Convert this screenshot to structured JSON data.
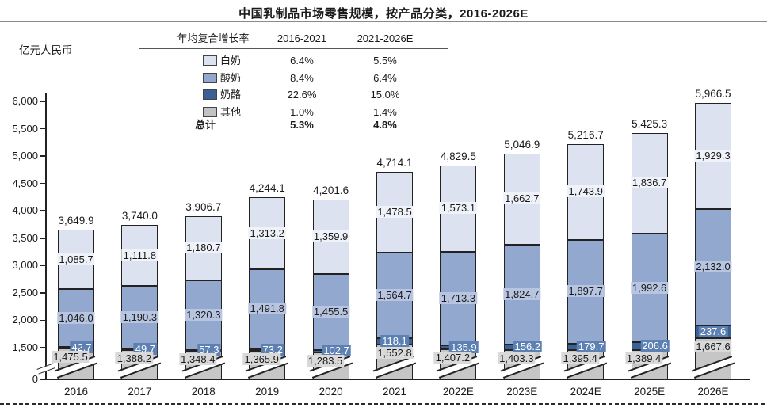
{
  "title": "中国乳制品市场零售规模，按产品分类，2016-2026E",
  "y_axis_unit": "亿元人民币",
  "legend": {
    "header": {
      "col_label": "年均复合增长率",
      "col_2016_2021": "2016-2021",
      "col_2021_2026": "2021-2026E"
    },
    "rows": [
      {
        "label": "白奶",
        "swatch_color": "#dce2ef",
        "cagr_2016_2021": "6.4%",
        "cagr_2021_2026": "5.5%"
      },
      {
        "label": "酸奶",
        "swatch_color": "#92a8ce",
        "cagr_2016_2021": "8.4%",
        "cagr_2021_2026": "6.4%"
      },
      {
        "label": "奶酪",
        "swatch_color": "#3a6195",
        "cagr_2016_2021": "22.6%",
        "cagr_2021_2026": "15.0%"
      },
      {
        "label": "其他",
        "swatch_color": "#c2c2c2",
        "cagr_2016_2021": "1.0%",
        "cagr_2021_2026": "1.4%"
      }
    ],
    "total_row": {
      "label": "总计",
      "cagr_2016_2021": "5.3%",
      "cagr_2021_2026": "4.8%"
    }
  },
  "chart_data": {
    "type": "bar",
    "stacked": true,
    "title": "中国乳制品市场零售规模，按产品分类，2016-2026E",
    "ylabel": "亿元人民币",
    "grid": false,
    "legend_position": "top-left-table",
    "categories": [
      "2016",
      "2017",
      "2018",
      "2019",
      "2020",
      "2021",
      "2022E",
      "2023E",
      "2024E",
      "2025E",
      "2026E"
    ],
    "series": [
      {
        "name": "其他",
        "key": "other",
        "color": "#c6c6c6",
        "label_bg": "#d9d9d9",
        "label_text": "#1a1a1a",
        "values": [
          1475.5,
          1388.2,
          1348.4,
          1365.9,
          1283.5,
          1552.8,
          1407.2,
          1403.3,
          1395.4,
          1389.4,
          1667.6
        ]
      },
      {
        "name": "奶酪",
        "key": "cheese",
        "color": "#3a6195",
        "label_bg": "#5d80b3",
        "label_text": "#ffffff",
        "values": [
          42.7,
          49.7,
          57.3,
          73.2,
          102.7,
          118.1,
          135.9,
          156.2,
          179.7,
          206.6,
          237.6
        ]
      },
      {
        "name": "酸奶",
        "key": "yogurt",
        "color": "#92a8ce",
        "label_bg": "#b7c5e0",
        "label_text": "#1a1a1a",
        "values": [
          1046.0,
          1190.3,
          1320.3,
          1491.8,
          1455.5,
          1564.7,
          1713.3,
          1824.7,
          1897.7,
          1992.6,
          2132.0
        ]
      },
      {
        "name": "白奶",
        "key": "white-milk",
        "color": "#dce2ef",
        "label_bg": "#eff2f8",
        "label_text": "#1a1a1a",
        "values": [
          1085.7,
          1111.8,
          1180.7,
          1313.2,
          1359.9,
          1478.5,
          1573.1,
          1662.7,
          1743.9,
          1836.7,
          1929.3
        ]
      }
    ],
    "totals": [
      3649.9,
      3740.0,
      3906.8,
      4244.1,
      4201.6,
      4714.2,
      4829.6,
      5046.9,
      5216.7,
      5425.3,
      5966.6
    ],
    "y_ticks": [
      6000,
      5500,
      5000,
      4500,
      4000,
      3500,
      3000,
      2500,
      2000,
      1500,
      0
    ],
    "y_axis_break": {
      "lower": 0,
      "upper": 1500
    }
  }
}
